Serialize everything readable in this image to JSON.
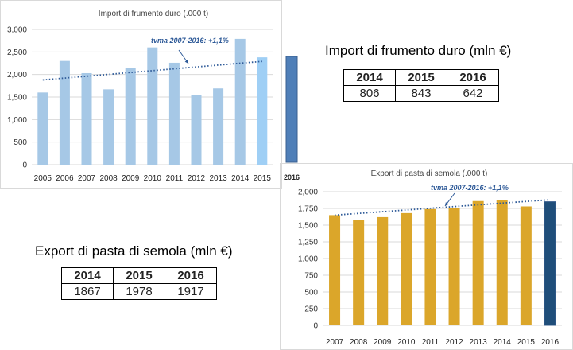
{
  "chart_data": [
    {
      "id": "import",
      "type": "bar",
      "title": "Import di frumento duro (.000 t)",
      "categories": [
        "2005",
        "2006",
        "2007",
        "2008",
        "2009",
        "2010",
        "2011",
        "2012",
        "2013",
        "2014",
        "2015",
        "2016"
      ],
      "values": [
        1600,
        2300,
        2030,
        1670,
        2150,
        2600,
        2260,
        1540,
        1690,
        2790,
        2380,
        2420
      ],
      "ylim": [
        0,
        3000
      ],
      "yticks": [
        "0",
        "500",
        "1,000",
        "1,500",
        "2,000",
        "2,500",
        "3,000"
      ],
      "trend_label": "tvma 2007-2016: +1,1%",
      "trend_line": [
        1880,
        2290
      ],
      "colors": {
        "bar": "#a6c8e6",
        "bar_2015": "#9fcff5",
        "bar_2016": "#4f7fb8",
        "trend": "#2e5a98",
        "grid": "#d9d9d9"
      }
    },
    {
      "id": "export",
      "type": "bar",
      "title": "Export di pasta di semola (.000 t)",
      "categories": [
        "2007",
        "2008",
        "2009",
        "2010",
        "2011",
        "2012",
        "2013",
        "2014",
        "2015",
        "2016"
      ],
      "values": [
        1650,
        1580,
        1620,
        1680,
        1740,
        1760,
        1860,
        1880,
        1780,
        1850
      ],
      "ylim": [
        0,
        2000
      ],
      "yticks": [
        "0",
        "250",
        "500",
        "750",
        "1,000",
        "1,250",
        "1,500",
        "1,750",
        "2,000"
      ],
      "trend_label": "tvma 2007-2016: +1,1%",
      "trend_line": [
        1650,
        1880
      ],
      "colors": {
        "bar": "#dba62a",
        "bar_2016": "#1f4e7a",
        "trend": "#2e5a98",
        "grid": "#d9d9d9"
      }
    }
  ],
  "import_mln": {
    "title": "Import di frumento duro (mln €)",
    "years": [
      "2014",
      "2015",
      "2016"
    ],
    "values": [
      "806",
      "843",
      "642"
    ]
  },
  "export_mln": {
    "title": "Export di pasta di semola (mln €)",
    "years": [
      "2014",
      "2015",
      "2016"
    ],
    "values": [
      "1867",
      "1978",
      "1917"
    ]
  }
}
